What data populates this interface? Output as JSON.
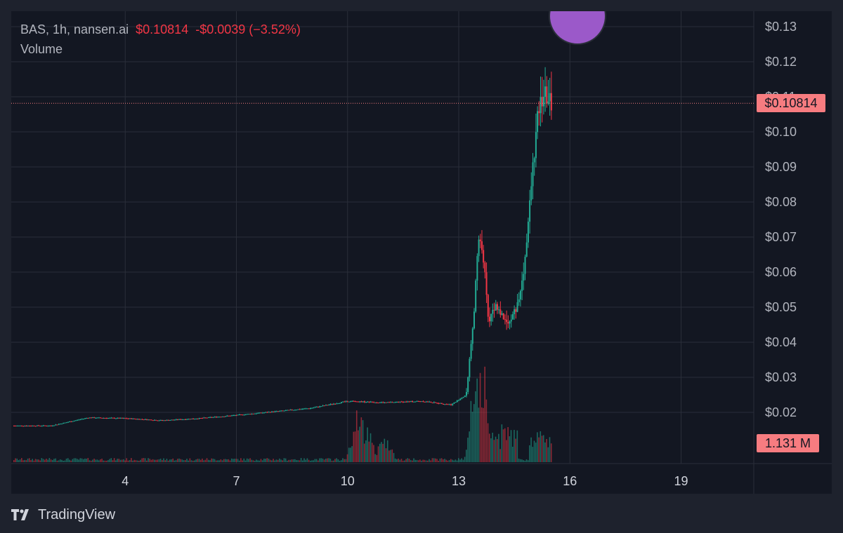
{
  "legend": {
    "title": "BAS, 1h, nansen.ai",
    "price": "$0.10814",
    "change": "-$0.0039",
    "change_pct": "(−3.52%)",
    "volume_label": "Volume"
  },
  "last_price_badge": "$0.10814",
  "last_volume_badge": "1.131 M",
  "brand": {
    "name": "TradingView",
    "logo_icon": "tradingview-logo-icon"
  },
  "colors": {
    "background": "#131722",
    "frame": "#1e222d",
    "up": "#22ab94",
    "down": "#f23645",
    "badge": "#f77c80",
    "grid": "#2a2e39"
  },
  "chart_data": {
    "type": "candlestick",
    "symbol": "BAS",
    "interval": "1h",
    "y_axis": {
      "ticks": [
        "$0.13",
        "$0.12",
        "$0.11",
        "$0.10",
        "$0.09",
        "$0.08",
        "$0.07",
        "$0.06",
        "$0.05",
        "$0.04",
        "$0.03",
        "$0.02"
      ],
      "tick_values": [
        0.13,
        0.12,
        0.11,
        0.1,
        0.09,
        0.08,
        0.07,
        0.06,
        0.05,
        0.04,
        0.03,
        0.02
      ],
      "ylim": [
        0.005,
        0.135
      ]
    },
    "x_axis": {
      "ticks": [
        "4",
        "7",
        "10",
        "13",
        "16",
        "19"
      ],
      "tick_days": [
        4,
        7,
        10,
        13,
        16,
        19
      ],
      "xlim_days": [
        1.0,
        21.0
      ]
    },
    "grid": true,
    "last_price": 0.10814,
    "price_path": [
      [
        1.0,
        0.0162
      ],
      [
        2.0,
        0.0162
      ],
      [
        3.0,
        0.0185
      ],
      [
        4.0,
        0.0183
      ],
      [
        5.0,
        0.0177
      ],
      [
        6.0,
        0.0183
      ],
      [
        7.0,
        0.0192
      ],
      [
        8.0,
        0.0202
      ],
      [
        9.0,
        0.0212
      ],
      [
        10.0,
        0.0232
      ],
      [
        11.0,
        0.0228
      ],
      [
        12.0,
        0.0232
      ],
      [
        12.8,
        0.0222
      ],
      [
        13.2,
        0.025
      ],
      [
        13.4,
        0.047
      ],
      [
        13.55,
        0.072
      ],
      [
        13.7,
        0.06
      ],
      [
        13.8,
        0.046
      ],
      [
        14.0,
        0.051
      ],
      [
        14.2,
        0.047
      ],
      [
        14.4,
        0.046
      ],
      [
        14.6,
        0.051
      ],
      [
        14.8,
        0.064
      ],
      [
        15.0,
        0.09
      ],
      [
        15.15,
        0.106
      ],
      [
        15.3,
        0.111
      ],
      [
        15.5,
        0.10814
      ]
    ],
    "volume_peaks": [
      [
        10.3,
        0.0165
      ],
      [
        10.55,
        0.0105
      ],
      [
        11.0,
        0.0085
      ],
      [
        13.5,
        0.0305
      ],
      [
        13.7,
        0.0255
      ],
      [
        14.1,
        0.0075
      ],
      [
        15.2,
        0.0105
      ]
    ],
    "last_volume": "1.131 M"
  }
}
